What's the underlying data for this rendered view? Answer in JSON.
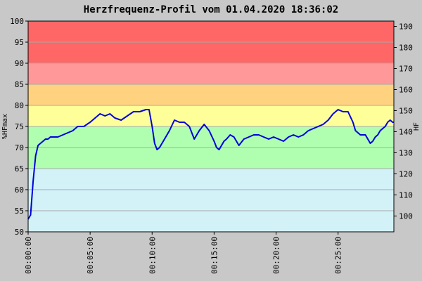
{
  "chart_data": {
    "type": "line",
    "title": "Herzfrequenz-Profil vom 01.04.2020 18:36:02",
    "ylabel": "%HFmax",
    "y2label": "HF",
    "xlabel": "",
    "ylim": [
      50,
      100
    ],
    "y2lim": [
      92.5,
      192.5
    ],
    "y_ticks": [
      "50",
      "55",
      "60",
      "65",
      "70",
      "75",
      "80",
      "85",
      "90",
      "95",
      "100"
    ],
    "y2_ticks": [
      "100",
      "110",
      "120",
      "130",
      "140",
      "150",
      "160",
      "170",
      "180",
      "190"
    ],
    "x_ticks": [
      "00:00:00",
      "00:05:00",
      "00:10:00",
      "00:15:00",
      "00:20:00",
      "00:25:00"
    ],
    "x_range_seconds": [
      0,
      1770
    ],
    "grid": true,
    "zones": [
      {
        "from": 50,
        "to": 65,
        "color": "#d2f2f8"
      },
      {
        "from": 65,
        "to": 75,
        "color": "#b0ffb0"
      },
      {
        "from": 75,
        "to": 80,
        "color": "#ffff99"
      },
      {
        "from": 80,
        "to": 85,
        "color": "#ffd27f"
      },
      {
        "from": 85,
        "to": 90,
        "color": "#ff9999"
      },
      {
        "from": 90,
        "to": 100,
        "color": "#ff6666"
      }
    ],
    "series": [
      {
        "color": "#0000dd",
        "x": [
          0,
          12,
          24,
          36,
          48,
          60,
          72,
          84,
          96,
          108,
          120,
          144,
          168,
          192,
          216,
          240,
          270,
          300,
          324,
          348,
          372,
          396,
          420,
          450,
          480,
          510,
          540,
          570,
          585,
          600,
          612,
          624,
          636,
          648,
          660,
          684,
          708,
          732,
          756,
          780,
          804,
          828,
          852,
          876,
          900,
          912,
          924,
          936,
          948,
          960,
          978,
          996,
          1020,
          1044,
          1068,
          1092,
          1116,
          1140,
          1164,
          1188,
          1212,
          1236,
          1260,
          1284,
          1308,
          1332,
          1356,
          1380,
          1404,
          1428,
          1452,
          1476,
          1500,
          1524,
          1548,
          1572,
          1584,
          1596,
          1608,
          1620,
          1632,
          1644,
          1656,
          1668,
          1680,
          1692,
          1704,
          1716,
          1728,
          1740,
          1752,
          1764,
          1770
        ],
        "y": [
          53,
          54,
          62,
          68,
          70.5,
          71,
          71.5,
          72,
          72,
          72.5,
          72.5,
          72.5,
          73,
          73.5,
          74,
          75,
          75,
          76,
          77,
          78,
          77.5,
          78,
          77,
          76.5,
          77.5,
          78.5,
          78.5,
          79,
          79,
          75,
          71,
          69.5,
          70,
          71,
          72,
          74,
          76.5,
          76,
          76,
          75,
          72,
          74,
          75.5,
          74,
          71.5,
          70,
          69.5,
          70.5,
          71.5,
          72,
          73,
          72.5,
          70.5,
          72,
          72.5,
          73,
          73,
          72.5,
          72,
          72.5,
          72,
          71.5,
          72.5,
          73,
          72.5,
          73,
          74,
          74.5,
          75,
          75.5,
          76.5,
          78,
          79,
          78.5,
          78.5,
          76,
          74,
          73.5,
          73,
          73,
          73,
          72,
          71,
          71.5,
          72.5,
          73,
          74,
          74.5,
          75,
          76,
          76.5,
          76,
          76
        ]
      }
    ]
  }
}
